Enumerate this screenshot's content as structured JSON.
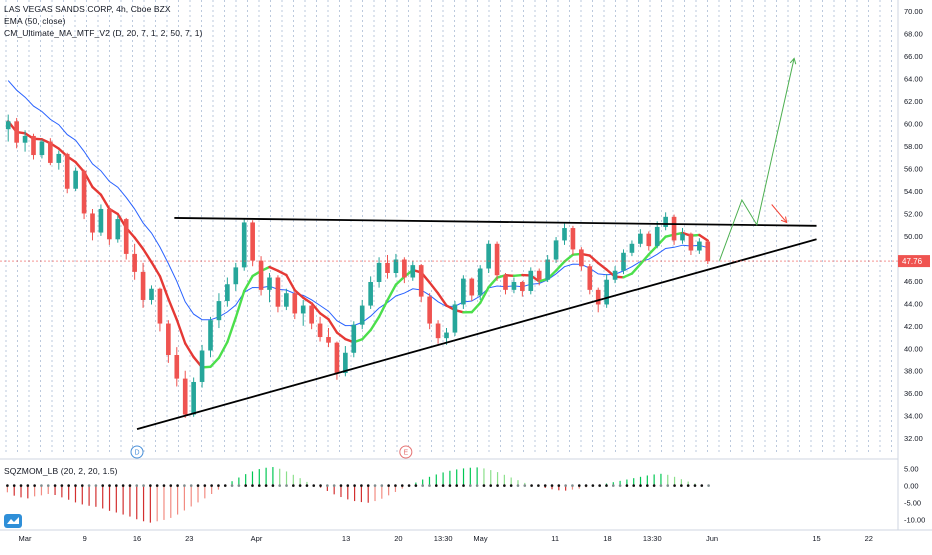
{
  "header": {
    "symbol_line": "LAS VEGAS SANDS CORP, 4h, Cboe BZX",
    "ema_line": "EMA (50, close)",
    "ma_line": "CM_Ultimate_MA_MTF_V2 (D, 20, 7, 1, 2, 50, 7, 1)"
  },
  "indicator": {
    "label": "SQZMOM_LB (20, 2, 20, 1.5)"
  },
  "colors": {
    "bull": "#26a69a",
    "bear": "#ef5350",
    "ema": "#2962ff",
    "ma_up": "#4cdf4c",
    "ma_down": "#e53935",
    "pattern": "#000000",
    "projection_up": "#4caf50",
    "projection_down": "#f44336",
    "price_tag": "#ef5350",
    "grid": "#9fb3cf",
    "event_d": "#4a90d9",
    "event_e": "#e57373"
  },
  "chart_data": [
    {
      "type": "candlestick",
      "title": "LAS VEGAS SANDS CORP, 4h, Cboe BZX",
      "ylim": [
        30.5,
        71
      ],
      "y_ticks": [
        32.0,
        34.0,
        36.0,
        38.0,
        40.0,
        42.0,
        44.0,
        46.0,
        48.0,
        50.0,
        52.0,
        54.0,
        56.0,
        58.0,
        60.0,
        62.0,
        64.0,
        66.0,
        68.0,
        70.0
      ],
      "y_tick_labels": [
        "32.00",
        "34.00",
        "36.00",
        "38.00",
        "40.00",
        "42.00",
        "44.00",
        "46.00",
        "48.00",
        "50.00",
        "52.00",
        "54.00",
        "56.00",
        "58.00",
        "60.00",
        "62.00",
        "64.00",
        "66.00",
        "68.00",
        "70.00"
      ],
      "x_range_days": [
        0,
        104
      ],
      "x_ticks": [
        {
          "label": "Mar",
          "day": 0
        },
        {
          "label": "9",
          "day": 8
        },
        {
          "label": "16",
          "day": 15
        },
        {
          "label": "23",
          "day": 22
        },
        {
          "label": "Apr",
          "day": 31
        },
        {
          "label": "13",
          "day": 43
        },
        {
          "label": "20",
          "day": 50
        },
        {
          "label": "13:30",
          "day": 56
        },
        {
          "label": "May",
          "day": 61
        },
        {
          "label": "11",
          "day": 71
        },
        {
          "label": "18",
          "day": 78
        },
        {
          "label": "13:30",
          "day": 84
        },
        {
          "label": "Jun",
          "day": 92
        },
        {
          "label": "15",
          "day": 106
        },
        {
          "label": "22",
          "day": 113
        }
      ],
      "last_price": "47.76",
      "last_price_value": 47.76,
      "candles": [
        [
          59.5,
          60.8,
          58.4,
          60.2
        ],
        [
          60.2,
          60.5,
          57.8,
          58.3
        ],
        [
          58.3,
          59.4,
          57.5,
          58.9
        ],
        [
          58.9,
          59.1,
          56.8,
          57.2
        ],
        [
          57.2,
          58.6,
          56.9,
          58.4
        ],
        [
          58.4,
          58.7,
          56.3,
          56.5
        ],
        [
          56.5,
          57.6,
          55.9,
          57.3
        ],
        [
          57.3,
          57.4,
          53.8,
          54.2
        ],
        [
          54.2,
          56.1,
          54.0,
          55.8
        ],
        [
          55.8,
          55.9,
          51.5,
          52.0
        ],
        [
          52.0,
          52.4,
          49.6,
          50.3
        ],
        [
          50.3,
          52.8,
          50.0,
          52.4
        ],
        [
          52.4,
          52.6,
          49.2,
          49.7
        ],
        [
          49.7,
          51.8,
          49.4,
          51.5
        ],
        [
          51.5,
          51.6,
          47.9,
          48.4
        ],
        [
          48.4,
          49.3,
          46.1,
          46.8
        ],
        [
          46.8,
          47.6,
          43.6,
          44.3
        ],
        [
          44.3,
          45.6,
          43.9,
          45.3
        ],
        [
          45.3,
          45.4,
          41.5,
          42.2
        ],
        [
          42.2,
          42.5,
          38.7,
          39.4
        ],
        [
          39.4,
          40.1,
          36.6,
          37.3
        ],
        [
          37.3,
          38.0,
          33.8,
          34.1
        ],
        [
          34.1,
          37.4,
          33.9,
          37.0
        ],
        [
          37.0,
          40.3,
          36.5,
          39.8
        ],
        [
          39.8,
          42.8,
          39.2,
          42.5
        ],
        [
          42.5,
          44.9,
          41.8,
          44.2
        ],
        [
          44.2,
          46.3,
          43.7,
          45.7
        ],
        [
          45.7,
          47.6,
          45.1,
          47.2
        ],
        [
          47.2,
          51.5,
          46.9,
          51.2
        ],
        [
          51.2,
          51.4,
          47.3,
          47.8
        ],
        [
          47.8,
          48.2,
          44.7,
          45.2
        ],
        [
          45.2,
          46.7,
          44.1,
          46.3
        ],
        [
          46.3,
          46.5,
          43.2,
          43.7
        ],
        [
          43.7,
          45.3,
          43.4,
          44.9
        ],
        [
          44.9,
          45.1,
          42.6,
          43.1
        ],
        [
          43.1,
          44.3,
          42.0,
          43.8
        ],
        [
          43.8,
          44.1,
          41.7,
          42.2
        ],
        [
          42.2,
          42.8,
          40.6,
          41.0
        ],
        [
          41.0,
          41.8,
          40.1,
          40.5
        ],
        [
          40.5,
          40.6,
          37.2,
          37.8
        ],
        [
          37.8,
          40.2,
          37.5,
          39.6
        ],
        [
          39.6,
          42.4,
          39.2,
          42.1
        ],
        [
          42.1,
          44.3,
          41.7,
          43.8
        ],
        [
          43.8,
          46.4,
          43.5,
          45.9
        ],
        [
          45.9,
          48.1,
          45.4,
          47.6
        ],
        [
          47.6,
          48.3,
          46.2,
          46.7
        ],
        [
          46.7,
          48.4,
          46.3,
          47.9
        ],
        [
          47.9,
          48.1,
          45.8,
          46.3
        ],
        [
          46.3,
          47.8,
          46.0,
          47.4
        ],
        [
          47.4,
          47.5,
          44.1,
          44.6
        ],
        [
          44.6,
          44.9,
          41.7,
          42.2
        ],
        [
          42.2,
          42.5,
          40.4,
          40.9
        ],
        [
          40.9,
          41.8,
          40.3,
          41.4
        ],
        [
          41.4,
          44.2,
          41.1,
          43.9
        ],
        [
          43.9,
          46.5,
          43.5,
          46.2
        ],
        [
          46.2,
          46.3,
          44.2,
          44.7
        ],
        [
          44.7,
          47.4,
          44.3,
          47.1
        ],
        [
          47.1,
          49.6,
          46.7,
          49.3
        ],
        [
          49.3,
          49.5,
          46.0,
          46.5
        ],
        [
          46.5,
          46.7,
          44.8,
          45.2
        ],
        [
          45.2,
          46.3,
          44.9,
          45.9
        ],
        [
          45.9,
          46.0,
          44.6,
          45.1
        ],
        [
          45.1,
          47.2,
          44.8,
          46.9
        ],
        [
          46.9,
          47.1,
          45.6,
          46.1
        ],
        [
          46.1,
          48.3,
          45.9,
          47.9
        ],
        [
          47.9,
          49.9,
          47.6,
          49.6
        ],
        [
          49.6,
          51.1,
          49.2,
          50.7
        ],
        [
          50.7,
          50.9,
          48.3,
          48.8
        ],
        [
          48.8,
          49.0,
          46.9,
          47.3
        ],
        [
          47.3,
          47.5,
          44.8,
          45.2
        ],
        [
          45.2,
          45.4,
          43.2,
          43.9
        ],
        [
          43.9,
          46.6,
          43.6,
          46.1
        ],
        [
          46.1,
          47.3,
          45.8,
          46.9
        ],
        [
          46.9,
          48.8,
          46.6,
          48.5
        ],
        [
          48.5,
          49.6,
          48.2,
          49.3
        ],
        [
          49.3,
          50.6,
          49.0,
          50.2
        ],
        [
          50.2,
          50.4,
          48.7,
          49.1
        ],
        [
          49.1,
          51.3,
          48.9,
          50.8
        ],
        [
          50.8,
          52.1,
          50.5,
          51.7
        ],
        [
          51.7,
          51.9,
          49.2,
          49.6
        ],
        [
          49.6,
          50.7,
          49.3,
          50.2
        ],
        [
          50.2,
          50.3,
          48.3,
          48.7
        ],
        [
          48.7,
          49.8,
          48.4,
          49.5
        ],
        [
          49.5,
          49.6,
          47.5,
          47.76
        ]
      ]
    },
    {
      "type": "histogram",
      "title": "SQZMOM_LB (20, 2, 20, 1.5)",
      "ylim": [
        -12,
        7
      ],
      "y_ticks": [
        5.0,
        0.0,
        -5.0,
        -10.0
      ],
      "y_tick_labels": [
        "5.00",
        "0.00",
        "-5.00",
        "-10.00"
      ],
      "values": [
        -2.0,
        -3.0,
        -3.5,
        -3.8,
        -3.2,
        -2.9,
        -2.5,
        -2.8,
        -3.5,
        -4.2,
        -5.0,
        -5.6,
        -6.0,
        -6.3,
        -6.8,
        -7.5,
        -8.0,
        -8.6,
        -9.2,
        -10.0,
        -10.6,
        -11.0,
        -10.6,
        -10.2,
        -9.6,
        -8.6,
        -7.4,
        -6.2,
        -5.0,
        -3.8,
        -2.5,
        -1.2,
        0.2,
        1.3,
        2.4,
        3.4,
        4.2,
        4.9,
        5.3,
        5.5,
        5.0,
        4.2,
        3.2,
        2.2,
        1.1,
        0.3,
        -0.6,
        -1.6,
        -2.6,
        -3.4,
        -4.1,
        -4.6,
        -4.9,
        -5.1,
        -4.6,
        -3.9,
        -2.9,
        -1.9,
        -0.9,
        0.2,
        0.9,
        1.8,
        2.6,
        3.3,
        3.9,
        4.4,
        4.8,
        5.1,
        5.3,
        5.4,
        5.1,
        4.6,
        4.0,
        3.2,
        2.4,
        1.6,
        0.8,
        0.2,
        -0.3,
        -0.7,
        -1.1,
        -1.4,
        -1.5,
        -1.2,
        -0.9,
        -0.5,
        -0.1,
        0.3,
        0.6,
        1.0,
        1.4,
        1.8,
        2.2,
        2.6,
        3.0,
        3.3,
        3.5,
        3.2,
        2.6,
        1.9,
        1.2,
        0.6,
        0.2,
        0.0
      ]
    }
  ]
}
